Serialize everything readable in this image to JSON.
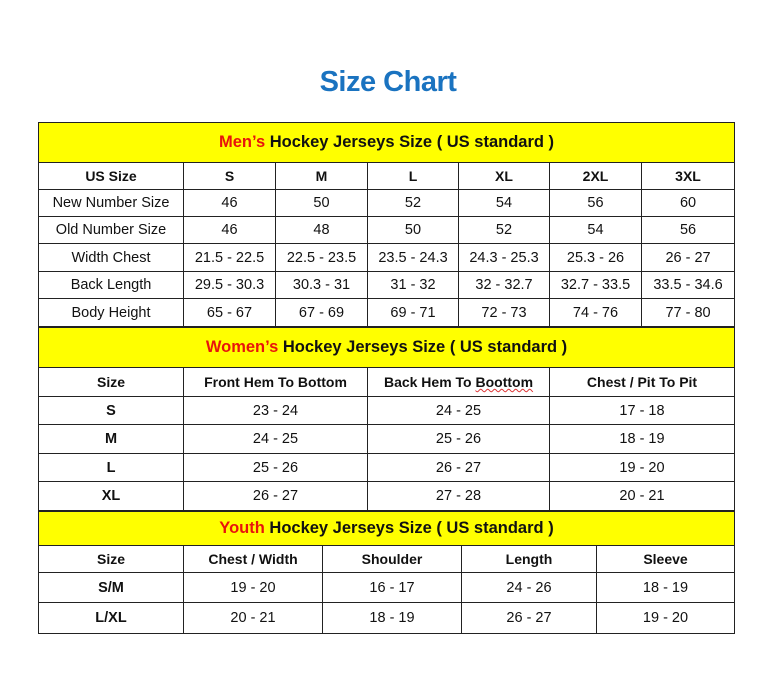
{
  "title": "Size Chart",
  "colors": {
    "title": "#1a73c0",
    "band": "#ffff00",
    "highlight": "#e8140c"
  },
  "men": {
    "band_prefix": "Men’s",
    "band_rest": " Hockey Jerseys Size ( US standard )",
    "headers": [
      "US Size",
      "S",
      "M",
      "L",
      "XL",
      "2XL",
      "3XL"
    ],
    "rows": [
      [
        "New Number Size",
        "46",
        "50",
        "52",
        "54",
        "56",
        "60"
      ],
      [
        "Old Number Size",
        "46",
        "48",
        "50",
        "52",
        "54",
        "56"
      ],
      [
        "Width Chest",
        "21.5 - 22.5",
        "22.5 - 23.5",
        "23.5 - 24.3",
        "24.3 - 25.3",
        "25.3 - 26",
        "26 - 27"
      ],
      [
        "Back Length",
        "29.5 - 30.3",
        "30.3 - 31",
        "31 - 32",
        "32 - 32.7",
        "32.7 - 33.5",
        "33.5 - 34.6"
      ],
      [
        "Body Height",
        "65 - 67",
        "67 - 69",
        "69 - 71",
        "72 - 73",
        "74 - 76",
        "77 - 80"
      ]
    ]
  },
  "women": {
    "band_prefix": "Women’s",
    "band_rest": " Hockey Jerseys Size ( US standard )",
    "headers": [
      "Size",
      "Front Hem To Bottom",
      "Back Hem To Boottom",
      "Chest / Pit To Pit"
    ],
    "rows": [
      [
        "S",
        "23 - 24",
        "24 - 25",
        "17 - 18"
      ],
      [
        "M",
        "24 - 25",
        "25 - 26",
        "18 - 19"
      ],
      [
        "L",
        "25 - 26",
        "26 - 27",
        "19 - 20"
      ],
      [
        "XL",
        "26 - 27",
        "27 - 28",
        "20 - 21"
      ]
    ]
  },
  "youth": {
    "band_prefix": "Youth",
    "band_rest": " Hockey Jerseys Size ( US standard )",
    "headers": [
      "Size",
      "Chest / Width",
      "Shoulder",
      "Length",
      "Sleeve"
    ],
    "rows": [
      [
        "S/M",
        "19 - 20",
        "16 - 17",
        "24 - 26",
        "18 - 19"
      ],
      [
        "L/XL",
        "20 - 21",
        "18 - 19",
        "26 - 27",
        "19 - 20"
      ]
    ]
  }
}
